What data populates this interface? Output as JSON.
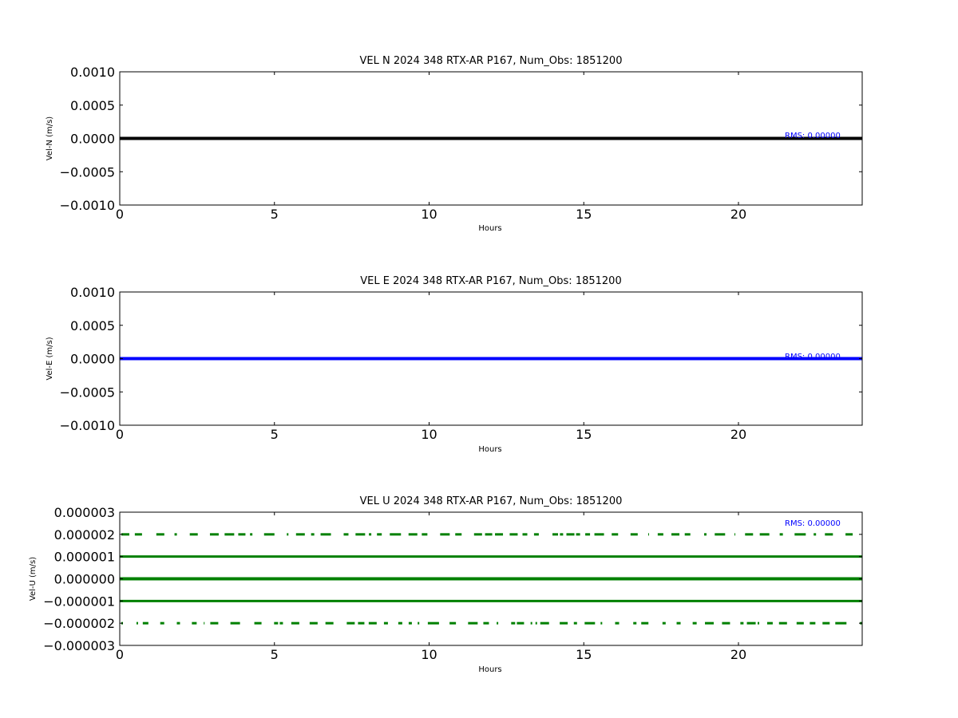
{
  "chart_data": [
    {
      "type": "scatter",
      "title": "VEL N 2024 348 RTX-AR  P167, Num_Obs: 1851200",
      "xlabel": "Hours",
      "ylabel": "Vel-N (m/s)",
      "xlim": [
        0,
        24
      ],
      "ylim": [
        -0.001,
        0.001
      ],
      "xticks": [
        0,
        5,
        10,
        15,
        20
      ],
      "xtick_labels": [
        "0",
        "5",
        "10",
        "15",
        "20"
      ],
      "yticks": [
        0.001,
        0.0005,
        0,
        -0.0005,
        -0.001
      ],
      "ytick_labels": [
        "0.0010",
        "0.0005",
        "0.0000",
        "−0.0005",
        "−0.0010"
      ],
      "grid": false,
      "annotation": "RMS:  0.00000",
      "series": [
        {
          "color": "#000000",
          "levels": [
            0
          ],
          "x_range": [
            0,
            24
          ]
        }
      ]
    },
    {
      "type": "scatter",
      "title": "VEL E 2024 348 RTX-AR  P167, Num_Obs: 1851200",
      "xlabel": "Hours",
      "ylabel": "Vel-E (m/s)",
      "xlim": [
        0,
        24
      ],
      "ylim": [
        -0.001,
        0.001
      ],
      "xticks": [
        0,
        5,
        10,
        15,
        20
      ],
      "xtick_labels": [
        "0",
        "5",
        "10",
        "15",
        "20"
      ],
      "yticks": [
        0.001,
        0.0005,
        0,
        -0.0005,
        -0.001
      ],
      "ytick_labels": [
        "0.0010",
        "0.0005",
        "0.0000",
        "−0.0005",
        "−0.0010"
      ],
      "grid": false,
      "annotation": "RMS:  0.00000",
      "series": [
        {
          "color": "#0000ff",
          "levels": [
            0
          ],
          "x_range": [
            0,
            24
          ]
        }
      ]
    },
    {
      "type": "scatter",
      "title": "VEL U 2024 348 RTX-AR  P167, Num_Obs: 1851200",
      "xlabel": "Hours",
      "ylabel": "Vel-U (m/s)",
      "xlim": [
        0,
        24
      ],
      "ylim": [
        -3e-06,
        3e-06
      ],
      "xticks": [
        0,
        5,
        10,
        15,
        20
      ],
      "xtick_labels": [
        "0",
        "5",
        "10",
        "15",
        "20"
      ],
      "yticks": [
        3e-06,
        2e-06,
        1e-06,
        0,
        -1e-06,
        -2e-06,
        -3e-06
      ],
      "ytick_labels": [
        "0.000003",
        "0.000002",
        "0.000001",
        "0.000000",
        "−0.000001",
        "−0.000002",
        "−0.000003"
      ],
      "grid": false,
      "annotation": "RMS:  0.00000",
      "series": [
        {
          "color": "#008000",
          "levels": [
            2e-06,
            1e-06,
            0,
            -1e-06,
            -2e-06
          ],
          "x_range": [
            0,
            24
          ]
        }
      ]
    }
  ]
}
